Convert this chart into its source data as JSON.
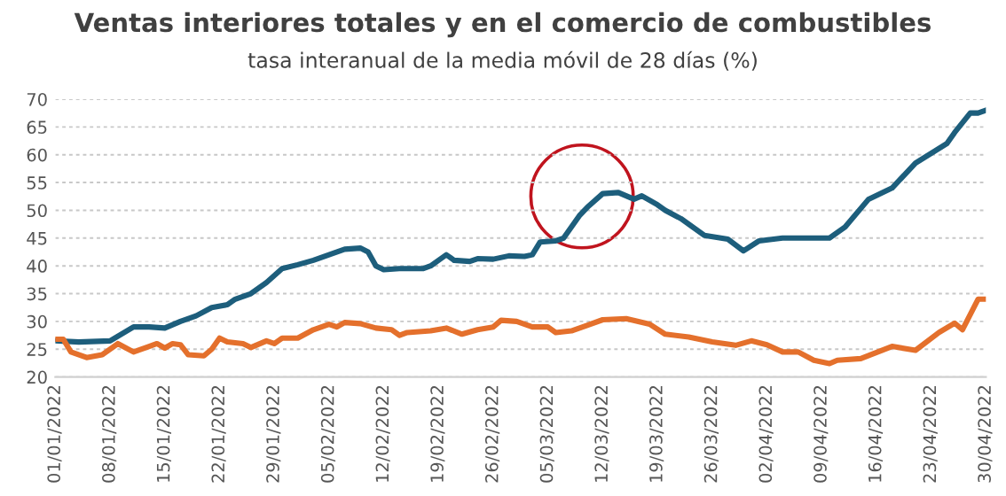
{
  "chart_data": {
    "type": "line",
    "title": "Ventas interiores totales y en el comercio de combustibles",
    "subtitle": "tasa interanual de la media móvil de 28 días (%)",
    "series": [
      {
        "color": "#1d5e7c",
        "x": [
          "2022-01-01",
          "2022-01-04",
          "2022-01-08",
          "2022-01-11",
          "2022-01-13",
          "2022-01-15",
          "2022-01-17",
          "2022-01-19",
          "2022-01-21",
          "2022-01-23",
          "2022-01-24",
          "2022-01-26",
          "2022-01-28",
          "2022-01-30",
          "2022-02-01",
          "2022-02-03",
          "2022-02-05",
          "2022-02-07",
          "2022-02-09",
          "2022-02-10",
          "2022-02-11",
          "2022-02-12",
          "2022-02-14",
          "2022-02-17",
          "2022-02-18",
          "2022-02-20",
          "2022-02-21",
          "2022-02-23",
          "2022-02-24",
          "2022-02-26",
          "2022-02-28",
          "2022-03-02",
          "2022-03-03",
          "2022-03-04",
          "2022-03-06",
          "2022-03-07",
          "2022-03-09",
          "2022-03-10",
          "2022-03-12",
          "2022-03-14",
          "2022-03-16",
          "2022-03-17",
          "2022-03-19",
          "2022-03-20",
          "2022-03-22",
          "2022-03-25",
          "2022-03-28",
          "2022-03-30",
          "2022-04-01",
          "2022-04-04",
          "2022-04-08",
          "2022-04-10",
          "2022-04-12",
          "2022-04-15",
          "2022-04-18",
          "2022-04-21",
          "2022-04-25",
          "2022-04-26",
          "2022-04-28",
          "2022-04-29",
          "2022-04-30"
        ],
        "values": [
          26.5,
          26.3,
          26.5,
          29,
          29,
          28.8,
          30,
          31,
          32.5,
          33,
          34,
          35,
          37,
          39.5,
          40.2,
          41,
          42,
          43,
          43.2,
          42.5,
          40,
          39.3,
          39.5,
          39.5,
          40,
          42,
          41,
          40.8,
          41.3,
          41.2,
          41.8,
          41.7,
          42,
          44.3,
          44.5,
          45,
          49,
          50.5,
          53,
          53.2,
          52,
          52.6,
          51,
          50,
          48.5,
          45.5,
          44.8,
          42.7,
          44.5,
          45,
          45,
          45,
          47,
          52,
          54,
          58.5,
          62,
          64,
          67.5,
          67.5,
          68
        ]
      },
      {
        "color": "#e4702c",
        "x": [
          "2022-01-01",
          "2022-01-02",
          "2022-01-03",
          "2022-01-05",
          "2022-01-07",
          "2022-01-09",
          "2022-01-11",
          "2022-01-13",
          "2022-01-14",
          "2022-01-15",
          "2022-01-16",
          "2022-01-17",
          "2022-01-18",
          "2022-01-20",
          "2022-01-21",
          "2022-01-22",
          "2022-01-23",
          "2022-01-25",
          "2022-01-26",
          "2022-01-28",
          "2022-01-29",
          "2022-01-30",
          "2022-02-01",
          "2022-02-03",
          "2022-02-05",
          "2022-02-06",
          "2022-02-07",
          "2022-02-09",
          "2022-02-11",
          "2022-02-13",
          "2022-02-14",
          "2022-02-15",
          "2022-02-18",
          "2022-02-20",
          "2022-02-22",
          "2022-02-24",
          "2022-02-26",
          "2022-02-27",
          "2022-03-01",
          "2022-03-03",
          "2022-03-05",
          "2022-03-06",
          "2022-03-08",
          "2022-03-10",
          "2022-03-12",
          "2022-03-15",
          "2022-03-18",
          "2022-03-20",
          "2022-03-23",
          "2022-03-26",
          "2022-03-29",
          "2022-03-31",
          "2022-04-02",
          "2022-04-04",
          "2022-04-06",
          "2022-04-08",
          "2022-04-10",
          "2022-04-11",
          "2022-04-14",
          "2022-04-18",
          "2022-04-21",
          "2022-04-24",
          "2022-04-26",
          "2022-04-27",
          "2022-04-29",
          "2022-04-30"
        ],
        "values": [
          26.8,
          26.8,
          24.5,
          23.5,
          24,
          26,
          24.5,
          25.5,
          26,
          25.2,
          26,
          25.8,
          24,
          23.8,
          25,
          27,
          26.3,
          26,
          25.3,
          26.5,
          26,
          27,
          27,
          28.5,
          29.5,
          29,
          29.8,
          29.6,
          28.8,
          28.5,
          27.5,
          28,
          28.3,
          28.8,
          27.7,
          28.5,
          29,
          30.2,
          30,
          29,
          29,
          28,
          28.3,
          29.3,
          30.3,
          30.5,
          29.5,
          27.7,
          27.2,
          26.3,
          25.7,
          26.5,
          25.8,
          24.5,
          24.5,
          23,
          22.4,
          23,
          23.3,
          25.5,
          24.8,
          28,
          29.7,
          28.5,
          34,
          34
        ]
      }
    ],
    "xlim": [
      "2022-01-01",
      "2022-04-30"
    ],
    "xticks": [
      {
        "value": "2022-01-01",
        "label": "01/01/2022"
      },
      {
        "value": "2022-01-08",
        "label": "08/01/2022"
      },
      {
        "value": "2022-01-15",
        "label": "15/01/2022"
      },
      {
        "value": "2022-01-22",
        "label": "22/01/2022"
      },
      {
        "value": "2022-01-29",
        "label": "29/01/2022"
      },
      {
        "value": "2022-02-05",
        "label": "05/02/2022"
      },
      {
        "value": "2022-02-12",
        "label": "12/02/2022"
      },
      {
        "value": "2022-02-19",
        "label": "19/02/2022"
      },
      {
        "value": "2022-02-26",
        "label": "26/02/2022"
      },
      {
        "value": "2022-03-05",
        "label": "05/03/2022"
      },
      {
        "value": "2022-03-12",
        "label": "12/03/2022"
      },
      {
        "value": "2022-03-19",
        "label": "19/03/2022"
      },
      {
        "value": "2022-03-26",
        "label": "26/03/2022"
      },
      {
        "value": "2022-04-02",
        "label": "02/04/2022"
      },
      {
        "value": "2022-04-09",
        "label": "09/04/2022"
      },
      {
        "value": "2022-04-16",
        "label": "16/04/2022"
      },
      {
        "value": "2022-04-23",
        "label": "23/04/2022"
      },
      {
        "value": "2022-04-30",
        "label": "30/04/2022"
      }
    ],
    "ylim": [
      20,
      70
    ],
    "yticks": [
      20,
      25,
      30,
      35,
      40,
      45,
      50,
      55,
      60,
      65,
      70
    ],
    "grid": "y",
    "marker": "none",
    "line_style": "solid"
  }
}
